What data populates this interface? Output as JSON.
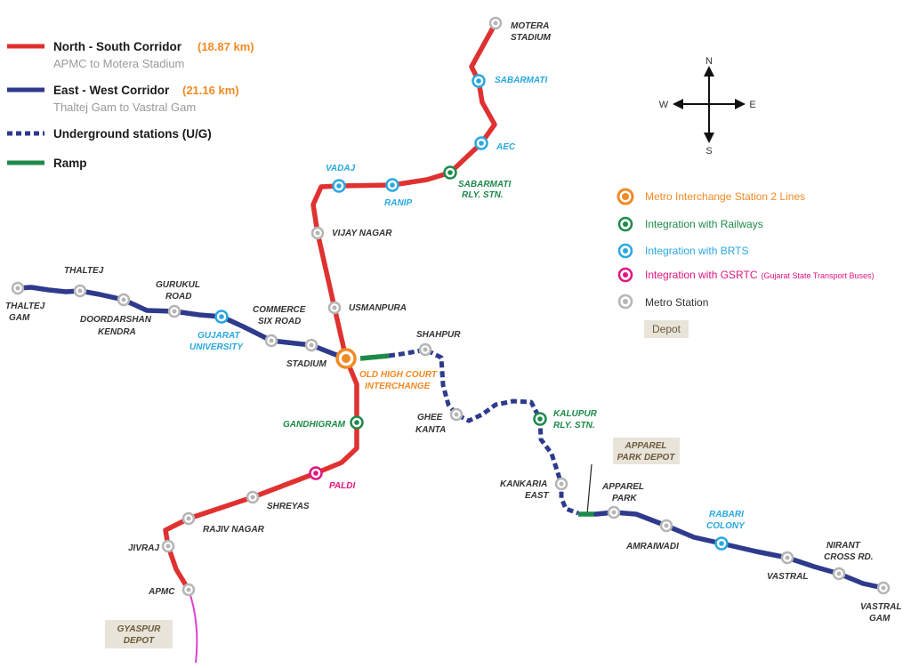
{
  "legend": {
    "ns": {
      "title": "North - South Corridor",
      "length": "(18.87 km)",
      "sub": "APMC to Motera Stadium",
      "color": "#e03131"
    },
    "ew": {
      "title": "East - West Corridor",
      "length": "(21.16 km)",
      "sub": "Thaltej Gam to Vastral Gam",
      "color": "#2e3a8c"
    },
    "ug": {
      "title": "Underground stations (U/G)"
    },
    "ramp": {
      "title": "Ramp",
      "color": "#1e8a4a"
    }
  },
  "key": {
    "interchange": "Metro Interchange Station 2 Lines",
    "railways": "Integration with Railways",
    "brts": "Integration with BRTS",
    "gsrtc": "Integration with GSRTC",
    "gsrtc_note": "(Gujarat State Transport Buses)",
    "metro": "Metro Station",
    "depot": "Depot"
  },
  "compass": {
    "n": "N",
    "s": "S",
    "e": "E",
    "w": "W"
  },
  "colors": {
    "interchange": "#f08a24",
    "railways": "#1e8a4a",
    "brts": "#29a8e0",
    "gsrtc": "#e0157f",
    "metro": "#b5b5b5",
    "depot_bg": "#e8e4da",
    "gsrtc_line": "#e040d0"
  },
  "stations": {
    "motera": [
      "MOTERA",
      "STADIUM"
    ],
    "sabarmati": [
      "SABARMATI"
    ],
    "aec": [
      "AEC"
    ],
    "sabarmati_rly": [
      "SABARMATI",
      "RLY. STN."
    ],
    "ranip": [
      "RANIP"
    ],
    "vadaj": [
      "VADAJ"
    ],
    "vijay_nagar": [
      "VIJAY NAGAR"
    ],
    "usmanpura": [
      "USMANPURA"
    ],
    "old_high_court": [
      "OLD HIGH COURT",
      "INTERCHANGE"
    ],
    "gandhigram": [
      "GANDHIGRAM"
    ],
    "paldi": [
      "PALDI"
    ],
    "shreyas": [
      "SHREYAS"
    ],
    "rajiv_nagar": [
      "RAJIV NAGAR"
    ],
    "jivraj": [
      "JIVRAJ"
    ],
    "apmc": [
      "APMC"
    ],
    "thaltej_gam": [
      "THALTEJ",
      "GAM"
    ],
    "thaltej": [
      "THALTEJ"
    ],
    "doordarshan": [
      "DOORDARSHAN",
      "KENDRA"
    ],
    "gurukul": [
      "GURUKUL",
      "ROAD"
    ],
    "gujarat_univ": [
      "GUJARAT",
      "UNIVERSITY"
    ],
    "commerce": [
      "COMMERCE",
      "SIX ROAD"
    ],
    "stadium": [
      "STADIUM"
    ],
    "shahpur": [
      "SHAHPUR"
    ],
    "ghee_kanta": [
      "GHEE",
      "KANTA"
    ],
    "kalupur": [
      "KALUPUR",
      "RLY. STN."
    ],
    "kankaria": [
      "KANKARIA",
      "EAST"
    ],
    "apparel_park": [
      "APPAREL",
      "PARK"
    ],
    "amraiwadi": [
      "AMRAIWADI"
    ],
    "rabari": [
      "RABARI",
      "COLONY"
    ],
    "vastral": [
      "VASTRAL"
    ],
    "nirant": [
      "NIRANT",
      "CROSS RD."
    ],
    "vastral_gam": [
      "VASTRAL",
      "GAM"
    ]
  },
  "depots": {
    "apparel": [
      "APPAREL",
      "PARK DEPOT"
    ],
    "gyaspur": [
      "GYASPUR",
      "DEPOT"
    ]
  }
}
